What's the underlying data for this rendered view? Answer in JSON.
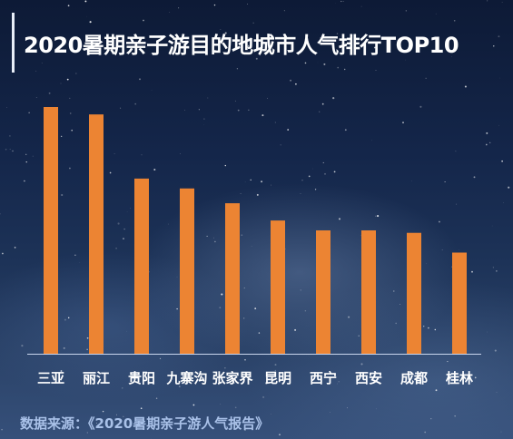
{
  "chart_data": {
    "type": "bar",
    "title": "2020暑期亲子游目的地城市人气排行TOP10",
    "categories": [
      "三亚",
      "丽江",
      "贵阳",
      "九寨沟",
      "张家界",
      "昆明",
      "西宁",
      "西安",
      "成都",
      "桂林"
    ],
    "values": [
      100,
      97,
      71,
      67,
      61,
      54,
      50,
      50,
      49,
      41
    ],
    "ylim": [
      0,
      100
    ],
    "grid": false,
    "legend": "none",
    "bar_color": "#ec8433",
    "axis_color": "#c9d6ee"
  },
  "source_text": "数据来源：《2020暑期亲子游人气报告》"
}
